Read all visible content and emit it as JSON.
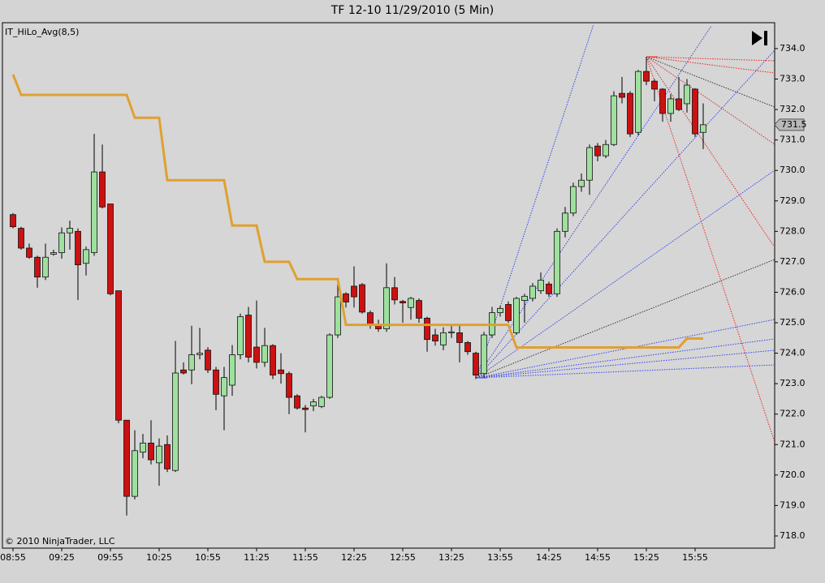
{
  "chart_data": {
    "type": "candlestick",
    "title": "TF 12-10  11/29/2010 (5 Min)",
    "copyright": "© 2010 NinjaTrader, LLC",
    "categories": [
      "08:55",
      null,
      null,
      null,
      null,
      null,
      "09:25",
      null,
      null,
      null,
      null,
      null,
      "09:55",
      null,
      null,
      null,
      null,
      null,
      "10:25",
      null,
      null,
      null,
      null,
      null,
      "10:55",
      null,
      null,
      null,
      null,
      null,
      "11:25",
      null,
      null,
      null,
      null,
      null,
      "11:55",
      null,
      null,
      null,
      null,
      null,
      "12:25",
      null,
      null,
      null,
      null,
      null,
      "12:55",
      null,
      null,
      null,
      null,
      null,
      "13:25",
      null,
      null,
      null,
      null,
      null,
      "13:55",
      null,
      null,
      null,
      null,
      null,
      "14:25",
      null,
      null,
      null,
      null,
      null,
      "14:55",
      null,
      null,
      null,
      null,
      null,
      "15:25",
      null,
      null,
      null,
      null,
      null,
      "15:55",
      null
    ],
    "open": [
      728.55,
      728.1,
      727.45,
      727.15,
      726.5,
      727.25,
      727.3,
      727.95,
      728.0,
      726.95,
      727.3,
      729.95,
      728.9,
      726.05,
      721.8,
      719.3,
      720.75,
      721.05,
      720.4,
      721.0,
      720.15,
      723.45,
      723.45,
      723.95,
      724.1,
      723.45,
      722.6,
      722.95,
      723.95,
      725.25,
      724.2,
      723.7,
      724.25,
      723.45,
      723.33,
      722.6,
      722.2,
      722.27,
      722.25,
      722.55,
      724.6,
      725.95,
      726.2,
      726.25,
      725.33,
      724.93,
      724.8,
      726.15,
      725.7,
      725.5,
      725.73,
      725.15,
      724.6,
      724.27,
      724.67,
      724.67,
      724.35,
      724.0,
      723.33,
      724.6,
      725.33,
      725.6,
      724.67,
      725.73,
      725.8,
      726.05,
      726.27,
      725.95,
      728.0,
      728.6,
      729.47,
      729.68,
      730.8,
      730.48,
      730.85,
      732.53,
      732.53,
      731.25,
      733.25,
      732.93,
      732.67,
      731.87,
      732.35,
      732.19,
      732.67,
      731.25
    ],
    "high": [
      728.6,
      728.15,
      727.6,
      727.2,
      727.6,
      727.4,
      728.13,
      728.35,
      728.1,
      727.5,
      731.2,
      730.85,
      728.9,
      726.05,
      721.8,
      721.47,
      721.35,
      721.8,
      721.2,
      721.3,
      724.4,
      723.7,
      724.9,
      724.83,
      724.2,
      723.55,
      723.55,
      724.27,
      725.3,
      725.52,
      725.73,
      724.83,
      724.3,
      724.0,
      723.4,
      722.65,
      722.3,
      722.5,
      722.6,
      724.65,
      726.45,
      726.0,
      726.85,
      726.3,
      725.4,
      725.1,
      726.95,
      726.5,
      725.75,
      725.85,
      725.8,
      725.2,
      724.8,
      724.85,
      724.9,
      724.93,
      724.4,
      724.05,
      724.7,
      725.52,
      725.55,
      725.7,
      725.85,
      725.95,
      726.3,
      726.65,
      726.35,
      728.1,
      728.8,
      729.6,
      729.9,
      730.85,
      730.9,
      731.0,
      732.6,
      733.07,
      732.6,
      733.3,
      733.73,
      733.0,
      732.7,
      732.5,
      733.07,
      733.0,
      732.7,
      732.2
    ],
    "low": [
      728.1,
      727.4,
      727.1,
      726.15,
      726.4,
      727.2,
      727.1,
      727.4,
      725.75,
      726.55,
      727.2,
      728.75,
      725.9,
      721.7,
      718.67,
      719.2,
      720.55,
      720.35,
      719.65,
      720.1,
      720.1,
      723.3,
      722.98,
      723.8,
      723.35,
      722.13,
      721.47,
      722.6,
      723.8,
      723.7,
      723.5,
      723.55,
      723.15,
      723.0,
      722.0,
      722.15,
      721.4,
      722.1,
      722.2,
      722.5,
      724.5,
      725.5,
      725.5,
      725.3,
      724.8,
      724.7,
      724.7,
      725.6,
      725.0,
      725.1,
      725.0,
      724.05,
      724.25,
      724.1,
      724.5,
      723.7,
      723.95,
      723.15,
      723.2,
      724.5,
      725.2,
      725.0,
      724.6,
      725.0,
      725.7,
      725.95,
      725.85,
      725.85,
      727.8,
      728.5,
      729.3,
      729.2,
      730.3,
      730.4,
      730.8,
      732.2,
      731.1,
      731.15,
      732.8,
      732.27,
      731.6,
      731.6,
      731.95,
      731.9,
      731.1,
      730.7
    ],
    "close": [
      728.15,
      727.45,
      727.15,
      726.5,
      727.15,
      727.3,
      727.95,
      728.1,
      726.9,
      727.4,
      729.95,
      728.8,
      725.95,
      721.8,
      719.3,
      720.8,
      721.05,
      720.5,
      720.95,
      720.2,
      723.35,
      723.35,
      723.95,
      724.0,
      723.45,
      722.65,
      723.2,
      723.95,
      725.2,
      723.87,
      723.7,
      724.25,
      723.28,
      723.33,
      722.55,
      722.2,
      722.15,
      722.4,
      722.55,
      724.6,
      725.85,
      725.68,
      725.85,
      725.35,
      724.93,
      724.8,
      726.15,
      725.75,
      725.65,
      725.8,
      725.15,
      724.45,
      724.4,
      724.67,
      724.7,
      724.35,
      724.05,
      723.28,
      724.6,
      725.33,
      725.47,
      725.07,
      725.8,
      725.87,
      726.2,
      726.4,
      725.95,
      728.0,
      728.6,
      729.47,
      729.68,
      730.75,
      730.48,
      730.85,
      732.45,
      732.4,
      731.2,
      733.25,
      732.93,
      732.67,
      731.87,
      732.35,
      732.0,
      732.8,
      731.2,
      731.5
    ],
    "up_color": "#9ee09e",
    "down_color": "#cc1111",
    "series": [
      {
        "name": "IT_HiLo_Avg(8,5)",
        "color": "#e0a030",
        "values": [
          733.15,
          732.48,
          732.48,
          732.48,
          732.48,
          732.48,
          732.48,
          732.48,
          732.48,
          732.48,
          732.48,
          732.48,
          732.48,
          732.48,
          732.48,
          731.73,
          731.73,
          731.73,
          731.73,
          729.68,
          729.68,
          729.68,
          729.68,
          729.68,
          729.68,
          729.68,
          729.68,
          728.19,
          728.19,
          728.19,
          728.19,
          727.0,
          727.0,
          727.0,
          727.0,
          726.43,
          726.43,
          726.43,
          726.43,
          726.43,
          726.43,
          724.93,
          724.93,
          724.93,
          724.93,
          724.93,
          724.93,
          724.93,
          724.93,
          724.93,
          724.93,
          724.93,
          724.93,
          724.93,
          724.93,
          724.93,
          724.93,
          724.93,
          724.93,
          724.93,
          724.93,
          724.93,
          724.19,
          724.19,
          724.19,
          724.19,
          724.19,
          724.19,
          724.19,
          724.19,
          724.19,
          724.19,
          724.19,
          724.19,
          724.19,
          724.19,
          724.19,
          724.19,
          724.19,
          724.19,
          724.19,
          724.19,
          724.19,
          724.48,
          724.48,
          724.48
        ]
      }
    ],
    "last_price": 731.5,
    "ylim": [
      717.6,
      734.85
    ],
    "yticks": [
      {
        "value": 718,
        "label": "718.0"
      },
      {
        "value": 719,
        "label": "719.0"
      },
      {
        "value": 720,
        "label": "720.0"
      },
      {
        "value": 721,
        "label": "721.0"
      },
      {
        "value": 722,
        "label": "722.0"
      },
      {
        "value": 723,
        "label": "723.0"
      },
      {
        "value": 724,
        "label": "724.0"
      },
      {
        "value": 725,
        "label": "725.0"
      },
      {
        "value": 726,
        "label": "726.0"
      },
      {
        "value": 727,
        "label": "727.0"
      },
      {
        "value": 728,
        "label": "728.0"
      },
      {
        "value": 729,
        "label": "729.0"
      },
      {
        "value": 730,
        "label": "730.0"
      },
      {
        "value": 731,
        "label": "731.0"
      },
      {
        "value": 732,
        "label": "732.0"
      },
      {
        "value": 733,
        "label": "733.0"
      },
      {
        "value": 734,
        "label": "734.0"
      }
    ]
  }
}
